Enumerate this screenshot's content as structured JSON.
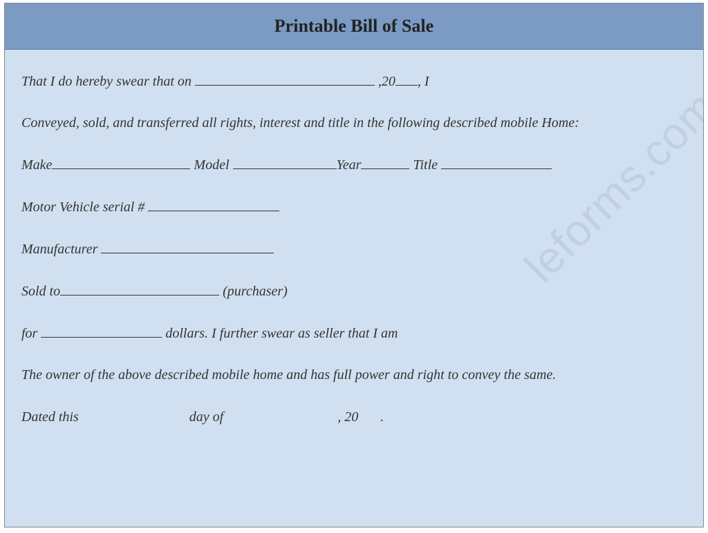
{
  "document": {
    "title": "Printable Bill of Sale",
    "colors": {
      "header_bg": "#7b9bc4",
      "body_bg": "#d1e0f0",
      "border": "#888888",
      "text": "#333333",
      "watermark": "rgba(120,140,160,0.18)"
    },
    "typography": {
      "title_fontsize": 26,
      "body_fontsize": 20,
      "body_style": "italic",
      "font_family": "Georgia, Times New Roman, serif"
    },
    "lines": {
      "l1a": "That I do hereby swear that on ",
      "l1b": " ,20",
      "l1c": ", I",
      "l2": "Conveyed, sold, and transferred all rights, interest and title in the following described mobile Home:",
      "l3a": "Make",
      "l3b": " Model ",
      "l3c": "Year",
      "l3d": " Title ",
      "l4": "Motor Vehicle serial # ",
      "l5": "Manufacturer ",
      "l6a": "Sold to",
      "l6b": " (purchaser)",
      "l7a": "for ",
      "l7b": " dollars. I further swear as seller that I am",
      "l8": "The owner of the above described mobile home and has full power and right to convey the same.",
      "l9a": "Dated this ",
      "l9b": " day of ",
      "l9c": ", 20",
      "l9d": "."
    },
    "blank_widths": {
      "date": 260,
      "year_suffix": 32,
      "make": 200,
      "model": 150,
      "year": 70,
      "title": 160,
      "serial": 190,
      "manufacturer": 250,
      "soldto": 230,
      "amount": 175,
      "dated_day": 150,
      "dated_month": 160,
      "dated_year": 32
    },
    "watermark_text": "leforms.com"
  }
}
